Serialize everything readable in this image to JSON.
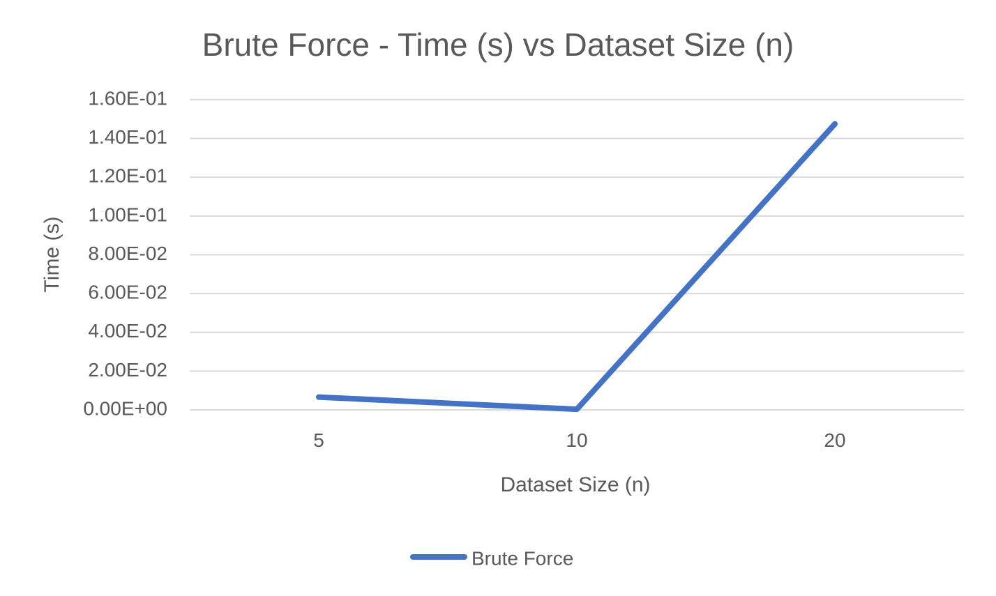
{
  "chart_data": {
    "type": "line",
    "title": "Brute Force - Time (s) vs Dataset Size (n)",
    "xlabel": "Dataset Size (n)",
    "ylabel": "Time (s)",
    "categories": [
      "5",
      "10",
      "20"
    ],
    "series": [
      {
        "name": "Brute Force",
        "values": [
          0.0066,
          0.0003,
          0.1475
        ],
        "color": "#4472C4"
      }
    ],
    "ylim": [
      0,
      0.16
    ],
    "yticks": [
      {
        "value": 0.16,
        "label": "1.60E-01"
      },
      {
        "value": 0.14,
        "label": "1.40E-01"
      },
      {
        "value": 0.12,
        "label": "1.20E-01"
      },
      {
        "value": 0.1,
        "label": "1.00E-01"
      },
      {
        "value": 0.08,
        "label": "8.00E-02"
      },
      {
        "value": 0.06,
        "label": "6.00E-02"
      },
      {
        "value": 0.04,
        "label": "4.00E-02"
      },
      {
        "value": 0.02,
        "label": "2.00E-02"
      },
      {
        "value": 0.0,
        "label": "0.00E+00"
      }
    ],
    "grid": true,
    "legend_position": "bottom",
    "colors": {
      "title": "#595959",
      "axis_text": "#595959",
      "gridline": "#D9D9D9"
    }
  }
}
